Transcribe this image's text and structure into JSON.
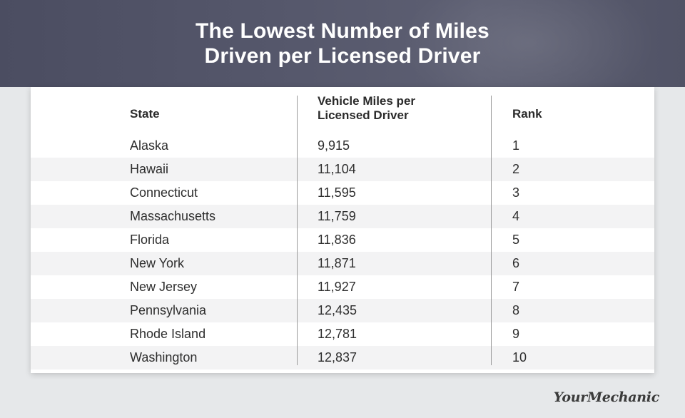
{
  "title_line1": "The Lowest Number of Miles",
  "title_line2": "Driven per Licensed Driver",
  "colors": {
    "banner": "#55576b",
    "row_shade": "#f3f3f4",
    "background": "#e6e8ea"
  },
  "chart_data": {
    "type": "table",
    "title": "The Lowest Number of Miles Driven per Licensed Driver",
    "columns": [
      "State",
      "Vehicle Miles per Licensed Driver",
      "Rank"
    ],
    "column_header_lines": {
      "miles_line1": "Vehicle Miles per",
      "miles_line2": "Licensed Driver"
    },
    "rows": [
      {
        "state": "Alaska",
        "miles": "9,915",
        "rank": "1"
      },
      {
        "state": "Hawaii",
        "miles": "11,104",
        "rank": "2"
      },
      {
        "state": "Connecticut",
        "miles": "11,595",
        "rank": "3"
      },
      {
        "state": "Massachusetts",
        "miles": "11,759",
        "rank": "4"
      },
      {
        "state": "Florida",
        "miles": "11,836",
        "rank": "5"
      },
      {
        "state": "New York",
        "miles": "11,871",
        "rank": "6"
      },
      {
        "state": "New Jersey",
        "miles": "11,927",
        "rank": "7"
      },
      {
        "state": "Pennsylvania",
        "miles": "12,435",
        "rank": "8"
      },
      {
        "state": "Rhode Island",
        "miles": "12,781",
        "rank": "9"
      },
      {
        "state": "Washington",
        "miles": "12,837",
        "rank": "10"
      }
    ]
  },
  "logo_text": "YourMechanic",
  "logo_icon": "yourmechanic-wordmark"
}
